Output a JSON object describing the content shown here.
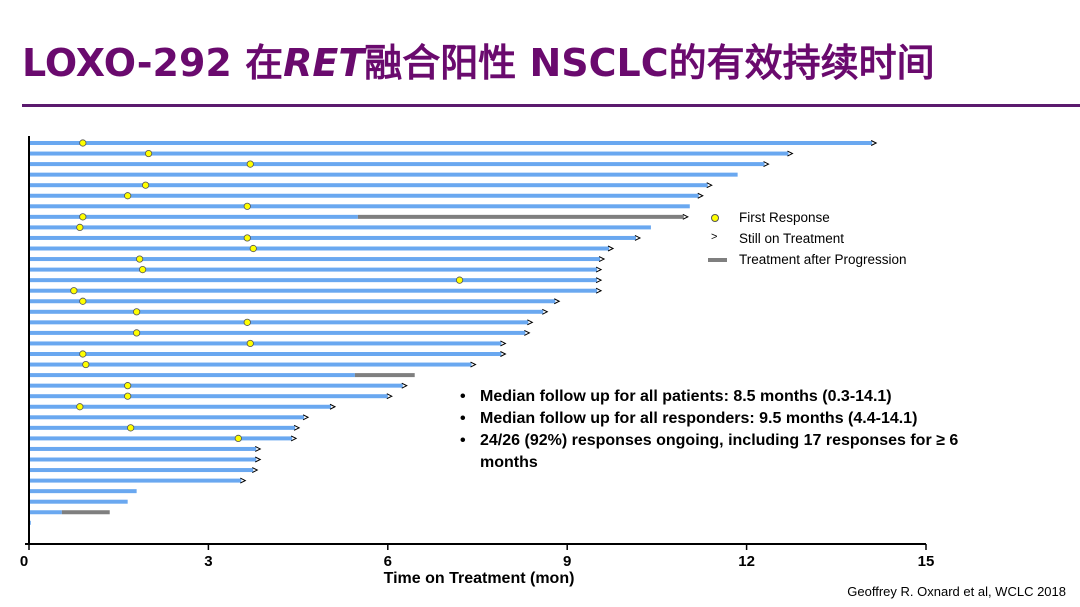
{
  "slide": {
    "title_prefix": "LOXO-292 在",
    "title_gene": "RET",
    "title_suffix": "融合阳性 NSCLC的有效持续时间",
    "source": "Geoffrey R. Oxnard et al, WCLC 2018"
  },
  "legend": {
    "first_response": "First Response",
    "still_on_treatment": "Still on Treatment",
    "after_progression": "Treatment after Progression"
  },
  "notes": [
    "Median follow up for all patients: 8.5 months (0.3-14.1)",
    "Median follow up for all responders: 9.5 months (4.4-14.1)",
    "24/26 (92%) responses ongoing, including 17 responses for ≥ 6 months"
  ],
  "chart_data": {
    "type": "swimmer",
    "xlabel": "Time on Treatment (mon)",
    "xlim": [
      0,
      15
    ],
    "xticks": [
      0,
      3,
      6,
      9,
      12,
      15
    ],
    "colors": {
      "treatment": "#6aa8f0",
      "after_progression": "#7f7f7f",
      "response": "#ffff00"
    },
    "patients": [
      {
        "duration": 14.1,
        "response": 0.9,
        "ongoing": true
      },
      {
        "duration": 12.7,
        "response": 2.0,
        "ongoing": true
      },
      {
        "duration": 12.3,
        "response": 3.7,
        "ongoing": true
      },
      {
        "duration": 11.85,
        "response": null,
        "ongoing": false
      },
      {
        "duration": 11.35,
        "response": 1.95,
        "ongoing": true
      },
      {
        "duration": 11.2,
        "response": 1.65,
        "ongoing": true
      },
      {
        "duration": 11.05,
        "response": 3.65,
        "ongoing": false
      },
      {
        "duration": 5.5,
        "progression_end": 10.95,
        "response": 0.9,
        "ongoing": true
      },
      {
        "duration": 10.4,
        "response": 0.85,
        "ongoing": false
      },
      {
        "duration": 10.15,
        "response": 3.65,
        "ongoing": true
      },
      {
        "duration": 9.7,
        "response": 3.75,
        "ongoing": true
      },
      {
        "duration": 9.55,
        "response": 1.85,
        "ongoing": true
      },
      {
        "duration": 9.5,
        "response": 1.9,
        "ongoing": true
      },
      {
        "duration": 9.5,
        "response": 7.2,
        "ongoing": true
      },
      {
        "duration": 9.5,
        "response": 0.75,
        "ongoing": true
      },
      {
        "duration": 8.8,
        "response": 0.9,
        "ongoing": true
      },
      {
        "duration": 8.6,
        "response": 1.8,
        "ongoing": true
      },
      {
        "duration": 8.35,
        "response": 3.65,
        "ongoing": true
      },
      {
        "duration": 8.3,
        "response": 1.8,
        "ongoing": true
      },
      {
        "duration": 7.9,
        "response": 3.7,
        "ongoing": true
      },
      {
        "duration": 7.9,
        "response": 0.9,
        "ongoing": true
      },
      {
        "duration": 7.4,
        "response": 0.95,
        "ongoing": true
      },
      {
        "duration": 5.45,
        "progression_end": 6.45,
        "response": null,
        "ongoing": false
      },
      {
        "duration": 6.25,
        "response": 1.65,
        "ongoing": true
      },
      {
        "duration": 6.0,
        "response": 1.65,
        "ongoing": true
      },
      {
        "duration": 5.05,
        "response": 0.85,
        "ongoing": true
      },
      {
        "duration": 4.6,
        "response": null,
        "ongoing": true
      },
      {
        "duration": 4.45,
        "response": 1.7,
        "ongoing": true
      },
      {
        "duration": 4.4,
        "response": 3.5,
        "ongoing": true
      },
      {
        "duration": 3.8,
        "response": null,
        "ongoing": true
      },
      {
        "duration": 3.8,
        "response": null,
        "ongoing": true
      },
      {
        "duration": 3.75,
        "response": null,
        "ongoing": true
      },
      {
        "duration": 3.55,
        "response": null,
        "ongoing": true
      },
      {
        "duration": 1.8,
        "response": null,
        "ongoing": false
      },
      {
        "duration": 1.65,
        "response": null,
        "ongoing": false
      },
      {
        "duration": 0.55,
        "progression_end": 1.35,
        "response": null,
        "ongoing": false
      },
      {
        "duration": 0.03,
        "response": null,
        "ongoing": false
      }
    ]
  }
}
